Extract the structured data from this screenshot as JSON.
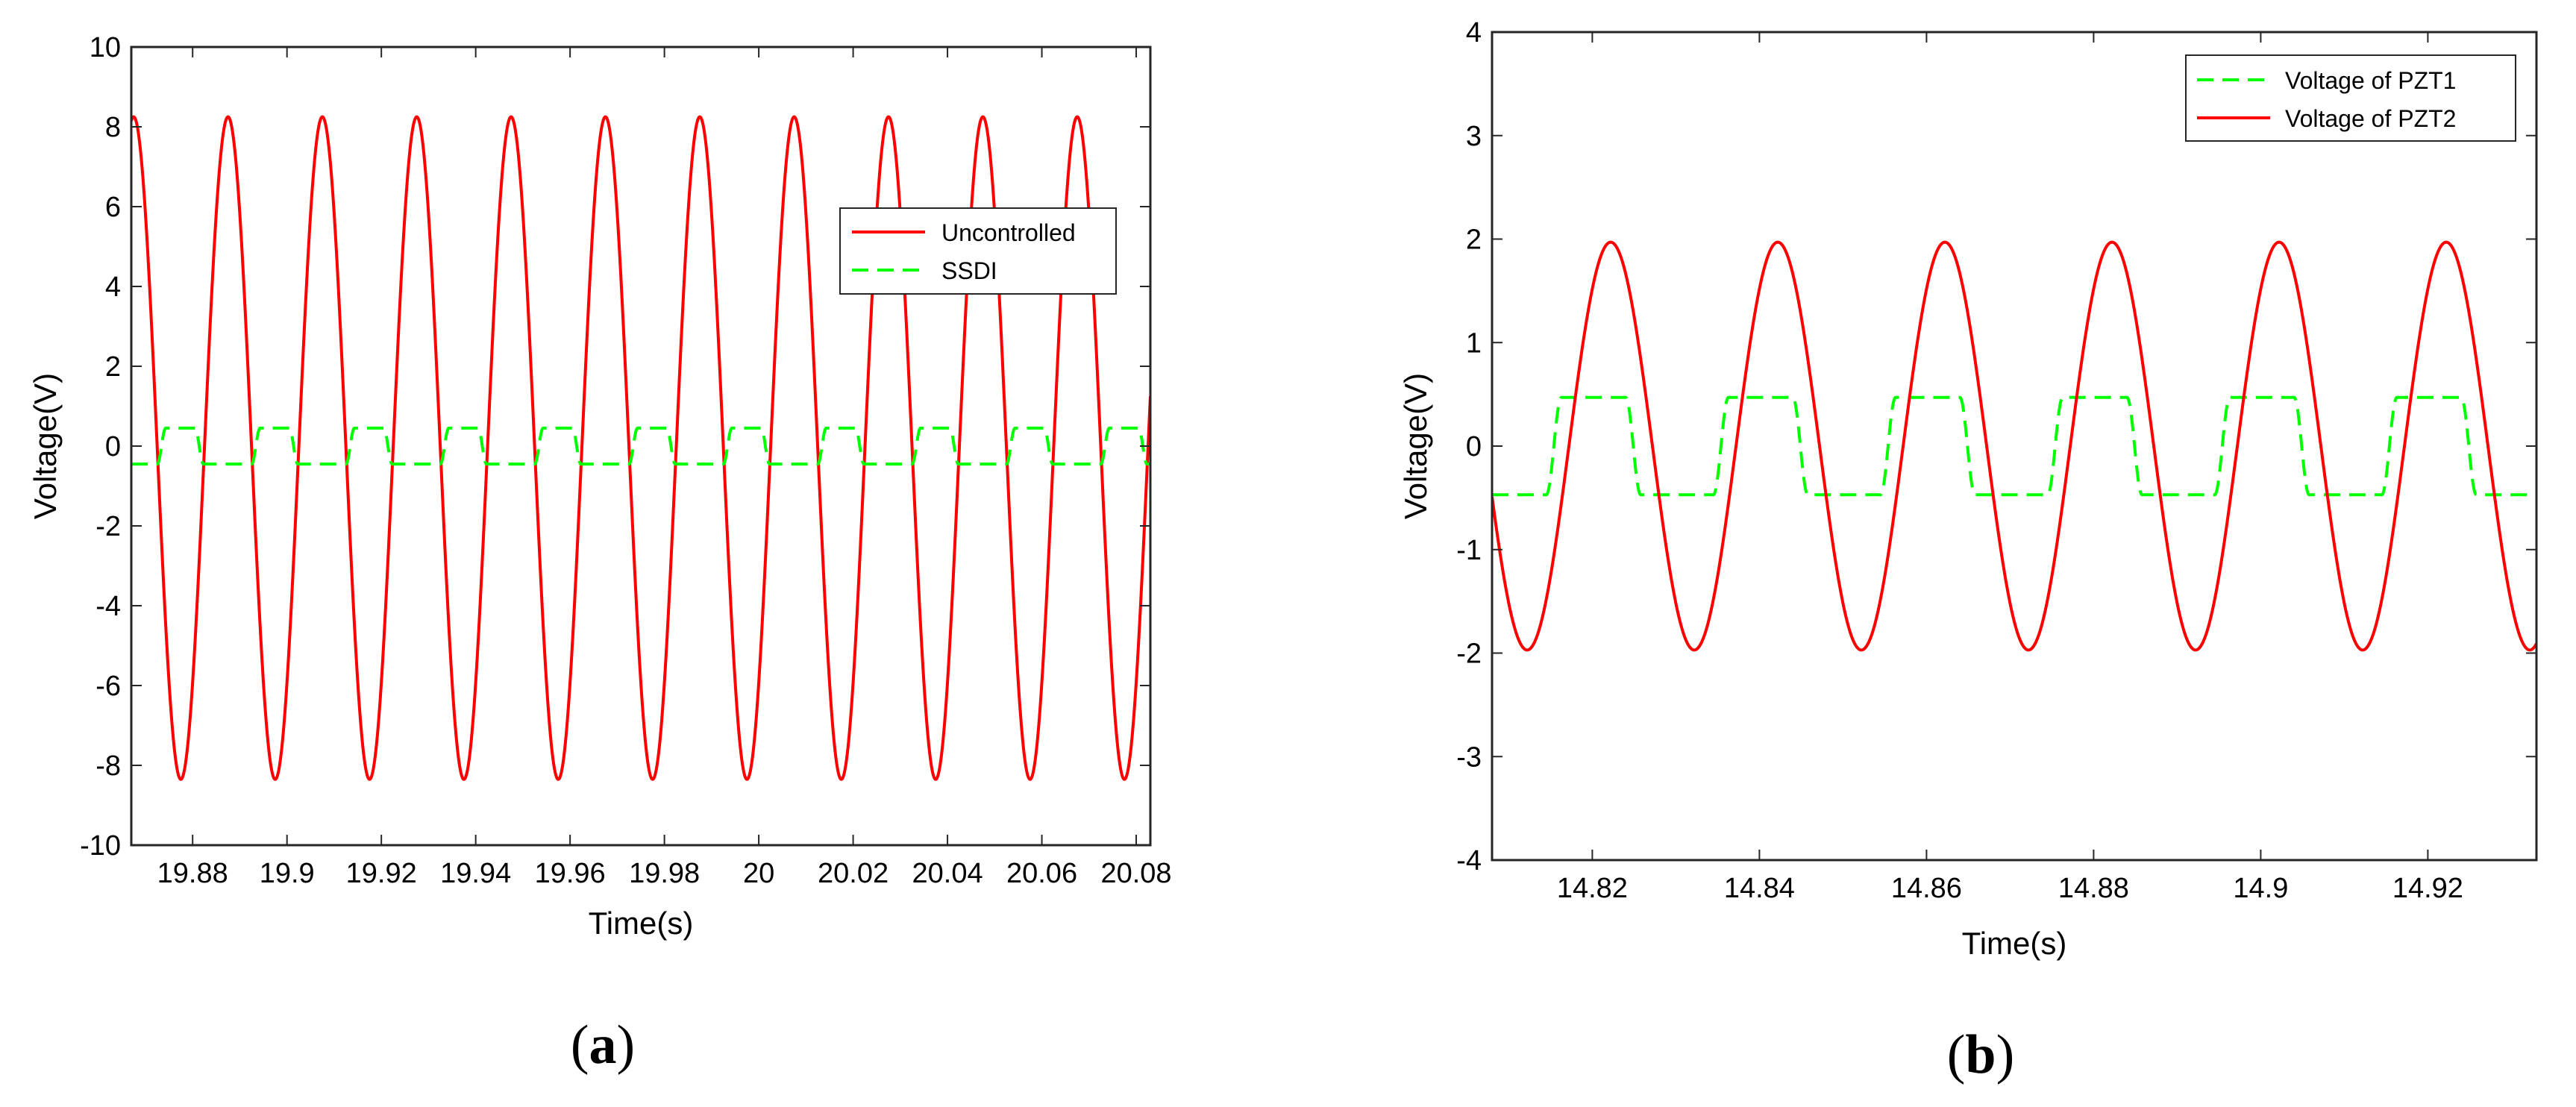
{
  "chart_data": [
    {
      "type": "line",
      "xlabel": "Time(s)",
      "ylabel": "Voltage(V)",
      "xlim": [
        19.867,
        20.083
      ],
      "ylim": [
        -10,
        10
      ],
      "x_ticks": [
        19.88,
        19.9,
        19.92,
        19.94,
        19.96,
        19.98,
        20,
        20.02,
        20.04,
        20.06,
        20.08
      ],
      "x_tick_labels": [
        "19.88",
        "19.9",
        "19.92",
        "19.94",
        "19.96",
        "19.98",
        "20",
        "20.02",
        "20.04",
        "20.06",
        "20.08"
      ],
      "y_ticks": [
        -10,
        -8,
        -6,
        -4,
        -2,
        0,
        2,
        4,
        6,
        8,
        10
      ],
      "y_tick_labels": [
        "-10",
        "-8",
        "-6",
        "-4",
        "-2",
        "0",
        "2",
        "4",
        "6",
        "8",
        "10"
      ],
      "grid": false,
      "legend_position": "right, upper-middle",
      "caption": "a",
      "series": [
        {
          "name": "Uncontrolled",
          "color": "#ff0000",
          "style": "solid",
          "shape": "sine",
          "frequency_hz": 50,
          "amplitude": 8.3,
          "offset": -0.05,
          "first_peak_x": 19.8875
        },
        {
          "name": "SSDI",
          "color": "#00ff00",
          "style": "dashed",
          "shape": "square",
          "frequency_hz": 50,
          "amplitude": 0.45,
          "offset": 0,
          "first_rise_x": 19.8725,
          "high_duration": 0.008
        }
      ]
    },
    {
      "type": "line",
      "xlabel": "Time(s)",
      "ylabel": "Voltage(V)",
      "xlim": [
        14.808,
        14.933
      ],
      "ylim": [
        -4,
        4
      ],
      "x_ticks": [
        14.82,
        14.84,
        14.86,
        14.88,
        14.9,
        14.92
      ],
      "x_tick_labels": [
        "14.82",
        "14.84",
        "14.86",
        "14.88",
        "14.9",
        "14.92"
      ],
      "y_ticks": [
        -4,
        -3,
        -2,
        -1,
        0,
        1,
        2,
        3,
        4
      ],
      "y_tick_labels": [
        "-4",
        "-3",
        "-2",
        "-1",
        "0",
        "1",
        "2",
        "3",
        "4"
      ],
      "grid": false,
      "legend_position": "top-right",
      "caption": "b",
      "series": [
        {
          "name": "Voltage of PZT1",
          "color": "#00ff00",
          "style": "dashed",
          "shape": "square",
          "frequency_hz": 50,
          "amplitude": 0.47,
          "offset": 0,
          "first_rise_x": 14.8145,
          "high_duration": 0.0095
        },
        {
          "name": "Voltage of PZT2",
          "color": "#ff0000",
          "style": "solid",
          "shape": "sine",
          "frequency_hz": 50,
          "amplitude": 1.97,
          "offset": 0,
          "first_peak_x": 14.8222
        }
      ]
    }
  ]
}
